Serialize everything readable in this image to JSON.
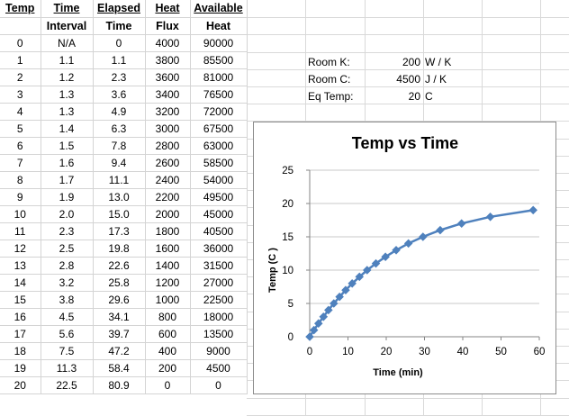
{
  "sheet": {
    "headers_row1": [
      "Temp",
      "Time",
      "Elapsed",
      "Heat",
      "Available"
    ],
    "headers_row2": [
      "",
      "Interval",
      "Time",
      "Flux",
      "Heat"
    ],
    "rows": [
      [
        "0",
        "N/A",
        "0",
        "4000",
        "90000"
      ],
      [
        "1",
        "1.1",
        "1.1",
        "3800",
        "85500"
      ],
      [
        "2",
        "1.2",
        "2.3",
        "3600",
        "81000"
      ],
      [
        "3",
        "1.3",
        "3.6",
        "3400",
        "76500"
      ],
      [
        "4",
        "1.3",
        "4.9",
        "3200",
        "72000"
      ],
      [
        "5",
        "1.4",
        "6.3",
        "3000",
        "67500"
      ],
      [
        "6",
        "1.5",
        "7.8",
        "2800",
        "63000"
      ],
      [
        "7",
        "1.6",
        "9.4",
        "2600",
        "58500"
      ],
      [
        "8",
        "1.7",
        "11.1",
        "2400",
        "54000"
      ],
      [
        "9",
        "1.9",
        "13.0",
        "2200",
        "49500"
      ],
      [
        "10",
        "2.0",
        "15.0",
        "2000",
        "45000"
      ],
      [
        "11",
        "2.3",
        "17.3",
        "1800",
        "40500"
      ],
      [
        "12",
        "2.5",
        "19.8",
        "1600",
        "36000"
      ],
      [
        "13",
        "2.8",
        "22.6",
        "1400",
        "31500"
      ],
      [
        "14",
        "3.2",
        "25.8",
        "1200",
        "27000"
      ],
      [
        "15",
        "3.8",
        "29.6",
        "1000",
        "22500"
      ],
      [
        "16",
        "4.5",
        "34.1",
        "800",
        "18000"
      ],
      [
        "17",
        "5.6",
        "39.7",
        "600",
        "13500"
      ],
      [
        "18",
        "7.5",
        "47.2",
        "400",
        "9000"
      ],
      [
        "19",
        "11.3",
        "58.4",
        "200",
        "4500"
      ],
      [
        "20",
        "22.5",
        "80.9",
        "0",
        "0"
      ]
    ]
  },
  "params": [
    {
      "label": "Room K:",
      "value": "200",
      "unit": "W / K"
    },
    {
      "label": "Room C:",
      "value": "4500",
      "unit": "J / K"
    },
    {
      "label": "Eq Temp:",
      "value": "20",
      "unit": "C"
    }
  ],
  "colors": {
    "series": "#4f81bd",
    "grid": "#c8c8c8",
    "axis": "#868686",
    "border": "#8c8c8c"
  },
  "chart_data": {
    "type": "scatter",
    "title": "Temp vs Time",
    "xlabel": "Time (min)",
    "ylabel": "Temp (C )",
    "xlim": [
      0,
      60
    ],
    "ylim": [
      0,
      25
    ],
    "xticks": [
      "0",
      "10",
      "20",
      "30",
      "40",
      "50",
      "60"
    ],
    "yticks": [
      "0",
      "5",
      "10",
      "15",
      "20",
      "25"
    ],
    "grid": "horizontal",
    "legend": "none",
    "series": [
      {
        "x": [
          0,
          1.1,
          2.3,
          3.6,
          4.9,
          6.3,
          7.8,
          9.4,
          11.1,
          13.0,
          15.0,
          17.3,
          19.8,
          22.6,
          25.8,
          29.6,
          34.1,
          39.7,
          47.2,
          58.4
        ],
        "y": [
          0,
          1,
          2,
          3,
          4,
          5,
          6,
          7,
          8,
          9,
          10,
          11,
          12,
          13,
          14,
          15,
          16,
          17,
          18,
          19
        ]
      }
    ]
  }
}
